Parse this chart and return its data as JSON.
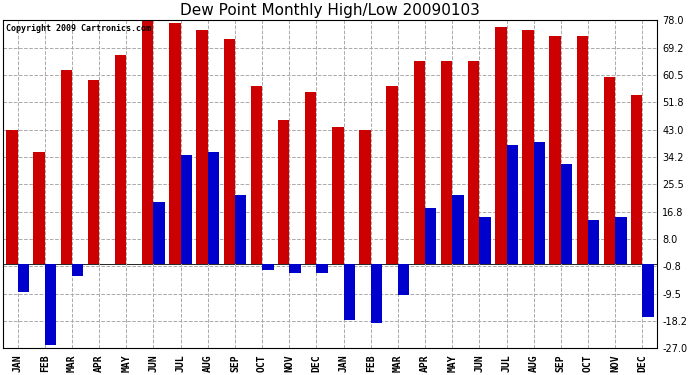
{
  "title": "Dew Point Monthly High/Low 20090103",
  "copyright": "Copyright 2009 Cartronics.com",
  "months": [
    "JAN",
    "FEB",
    "MAR",
    "APR",
    "MAY",
    "JUN",
    "JUL",
    "AUG",
    "SEP",
    "OCT",
    "NOV",
    "DEC",
    "JAN",
    "FEB",
    "MAR",
    "APR",
    "MAY",
    "JUN",
    "JUL",
    "AUG",
    "SEP",
    "OCT",
    "NOV",
    "DEC"
  ],
  "high_values": [
    43,
    36,
    62,
    59,
    67,
    78,
    77,
    75,
    72,
    57,
    46,
    55,
    44,
    43,
    57,
    65,
    65,
    65,
    76,
    75,
    73,
    73,
    60,
    54
  ],
  "low_values": [
    -9,
    -26,
    -4,
    0,
    0,
    20,
    35,
    36,
    22,
    -2,
    -3,
    -3,
    -18,
    -19,
    -10,
    18,
    22,
    15,
    38,
    39,
    32,
    14,
    15,
    -17
  ],
  "bar_width": 0.42,
  "high_color": "#cc0000",
  "low_color": "#0000cc",
  "bg_color": "#ffffff",
  "plot_bg_color": "#ffffff",
  "grid_color": "#aaaaaa",
  "yticks": [
    78.0,
    69.2,
    60.5,
    51.8,
    43.0,
    34.2,
    25.5,
    16.8,
    8.0,
    -0.8,
    -9.5,
    -18.2,
    -27.0
  ],
  "ylim": [
    -27.0,
    78.0
  ],
  "title_fontsize": 11,
  "copyright_fontsize": 6,
  "tick_fontsize": 7,
  "xlabel_fontsize": 7
}
